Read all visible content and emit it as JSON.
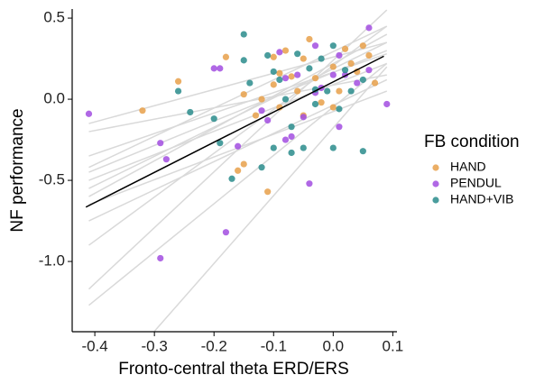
{
  "chart_data": {
    "type": "scatter",
    "xlabel": "Fronto-central theta ERD/ERS",
    "ylabel": "NF performance",
    "legend_title": "FB condition",
    "legend": "right",
    "grid": false,
    "xlim": [
      -0.438,
      0.107
    ],
    "ylim": [
      -1.433,
      0.556
    ],
    "xticks": [
      -0.4,
      -0.3,
      -0.2,
      -0.1,
      {
        "value": 0,
        "label": "0.0"
      },
      0.1
    ],
    "yticks": [
      0.5,
      {
        "value": 0,
        "label": "0.0"
      },
      -0.5,
      {
        "value": -1,
        "label": "-1.0"
      }
    ],
    "series": [
      {
        "name": "HAND",
        "color": "#e8a04a",
        "x": [
          -0.32,
          -0.26,
          -0.16,
          -0.11,
          -0.15,
          -0.18,
          -0.15,
          -0.1,
          -0.08,
          -0.06,
          -0.05,
          -0.04,
          -0.03,
          -0.02,
          0.0,
          0.01,
          0.02,
          0.03,
          0.04,
          0.05,
          0.06,
          0.07,
          -0.09,
          -0.12,
          -0.07,
          -0.1,
          -0.09,
          0.0,
          -0.05,
          -0.13
        ],
        "values": [
          -0.07,
          0.11,
          -0.44,
          -0.57,
          -0.4,
          0.26,
          0.03,
          0.09,
          0.3,
          0.05,
          0.25,
          0.37,
          0.13,
          -0.02,
          0.2,
          0.05,
          0.31,
          0.22,
          0.17,
          0.33,
          0.27,
          0.1,
          -0.05,
          0.0,
          0.14,
          0.26,
          0.16,
          -0.05,
          -0.1,
          -0.1
        ]
      },
      {
        "name": "PENDUL",
        "color": "#a24de0",
        "x": [
          -0.41,
          -0.29,
          -0.29,
          -0.28,
          -0.2,
          -0.19,
          -0.18,
          -0.16,
          -0.11,
          -0.09,
          -0.08,
          -0.07,
          -0.06,
          -0.05,
          -0.04,
          -0.03,
          -0.02,
          0.0,
          0.01,
          0.02,
          0.04,
          0.06,
          0.06,
          0.09,
          -0.12,
          -0.08,
          -0.03,
          0.01
        ],
        "values": [
          -0.09,
          -0.98,
          -0.27,
          -0.37,
          0.19,
          0.19,
          -0.82,
          -0.29,
          -0.13,
          0.29,
          0.13,
          -0.23,
          0.15,
          -0.11,
          -0.52,
          0.04,
          0.07,
          0.15,
          -0.17,
          0.15,
          0.1,
          0.18,
          0.44,
          -0.03,
          -0.07,
          -0.25,
          0.33,
          0.27
        ]
      },
      {
        "name": "HAND+VIB",
        "color": "#2a8c8c",
        "x": [
          -0.26,
          -0.24,
          -0.2,
          -0.19,
          -0.17,
          -0.15,
          -0.15,
          -0.14,
          -0.12,
          -0.1,
          -0.1,
          -0.09,
          -0.07,
          -0.07,
          -0.05,
          -0.04,
          -0.03,
          -0.02,
          -0.01,
          0.0,
          0.01,
          0.02,
          0.03,
          0.05,
          0.05,
          -0.06,
          -0.03,
          0.0,
          -0.11,
          -0.08
        ],
        "values": [
          0.05,
          -0.08,
          -0.12,
          -0.27,
          -0.49,
          0.4,
          0.24,
          0.1,
          -0.42,
          -0.3,
          0.17,
          0.12,
          -0.17,
          -0.33,
          -0.3,
          0.19,
          0.06,
          0.25,
          0.05,
          -0.3,
          -0.06,
          0.18,
          0.05,
          0.12,
          -0.32,
          0.28,
          -0.03,
          0.33,
          0.27,
          0.0
        ]
      }
    ],
    "individual_lines": [
      {
        "x": [
          -0.41,
          0.09
        ],
        "values": [
          -1.17,
          0.55
        ]
      },
      {
        "x": [
          -0.41,
          0.09
        ],
        "values": [
          -1.27,
          0.22
        ]
      },
      {
        "x": [
          -0.41,
          0.09
        ],
        "values": [
          -0.45,
          0.3
        ]
      },
      {
        "x": [
          -0.41,
          0.09
        ],
        "values": [
          -0.55,
          0.35
        ]
      },
      {
        "x": [
          -0.41,
          0.09
        ],
        "values": [
          -0.6,
          0.4
        ]
      },
      {
        "x": [
          -0.41,
          0.09
        ],
        "values": [
          -0.15,
          0.35
        ]
      },
      {
        "x": [
          -0.41,
          0.09
        ],
        "values": [
          -0.5,
          0.22
        ]
      },
      {
        "x": [
          -0.41,
          0.09
        ],
        "values": [
          -0.35,
          0.28
        ]
      },
      {
        "x": [
          -0.41,
          0.09
        ],
        "values": [
          -0.9,
          0.45
        ]
      },
      {
        "x": [
          -0.41,
          0.09
        ],
        "values": [
          -0.75,
          0.12
        ]
      },
      {
        "x": [
          -0.41,
          0.09
        ],
        "values": [
          -0.2,
          0.15
        ]
      },
      {
        "x": [
          -0.3,
          0.09
        ],
        "values": [
          -1.43,
          0.2
        ]
      },
      {
        "x": [
          -0.41,
          0.09
        ],
        "values": [
          -0.42,
          0.45
        ]
      },
      {
        "x": [
          -0.41,
          0.09
        ],
        "values": [
          -0.65,
          0.05
        ]
      }
    ],
    "fit_line": {
      "color": "#000000",
      "x": [
        -0.415,
        0.085
      ],
      "values": [
        -0.665,
        0.265
      ]
    }
  }
}
